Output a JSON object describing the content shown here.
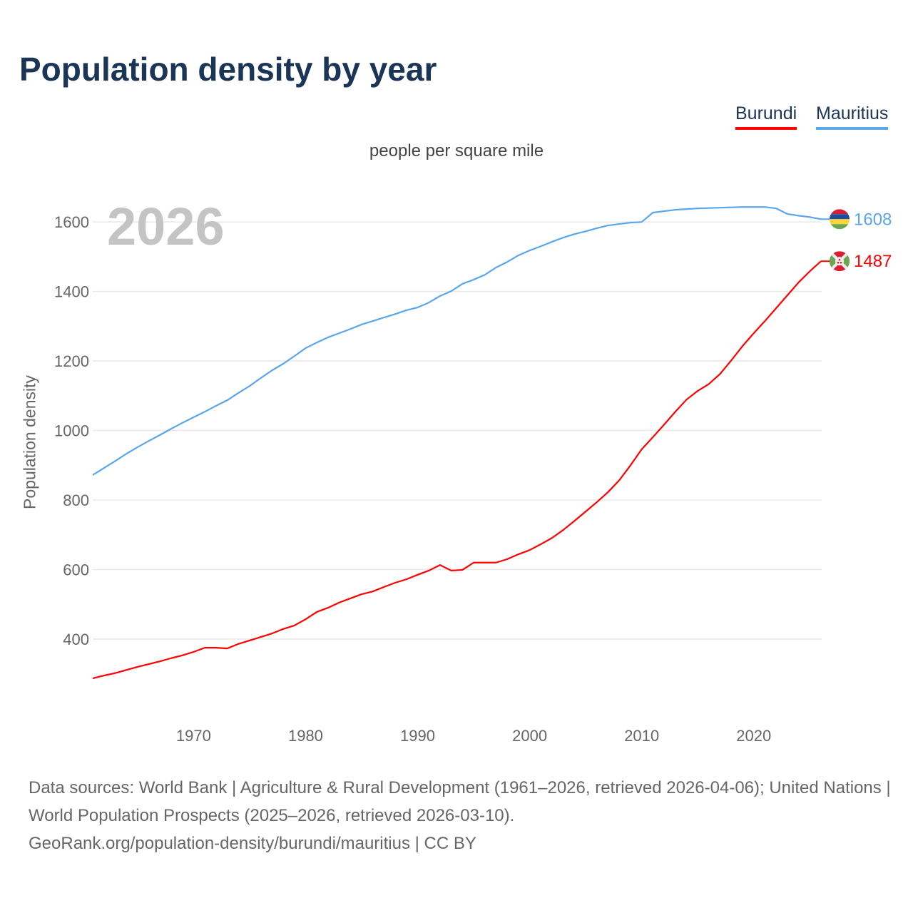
{
  "chart_data": {
    "type": "line",
    "title": "Population density by year",
    "subtitle": "people per square mile",
    "ylabel": "Population density",
    "xlabel": "",
    "current_year_label": "2026",
    "xlim": [
      1961,
      2026
    ],
    "ylim": [
      207,
      1705
    ],
    "x_ticks": [
      1970,
      1980,
      1990,
      2000,
      2010,
      2020
    ],
    "y_ticks": [
      400,
      600,
      800,
      1000,
      1200,
      1400,
      1600
    ],
    "grid": "horizontal",
    "legend_placement": "top-right",
    "x": [
      1961,
      1962,
      1963,
      1964,
      1965,
      1966,
      1967,
      1968,
      1969,
      1970,
      1971,
      1972,
      1973,
      1974,
      1975,
      1976,
      1977,
      1978,
      1979,
      1980,
      1981,
      1982,
      1983,
      1984,
      1985,
      1986,
      1987,
      1988,
      1989,
      1990,
      1991,
      1992,
      1993,
      1994,
      1995,
      1996,
      1997,
      1998,
      1999,
      2000,
      2001,
      2002,
      2003,
      2004,
      2005,
      2006,
      2007,
      2008,
      2009,
      2010,
      2011,
      2012,
      2013,
      2014,
      2015,
      2016,
      2017,
      2018,
      2019,
      2020,
      2021,
      2022,
      2023,
      2024,
      2025,
      2026
    ],
    "series": [
      {
        "name": "Burundi",
        "color": "#ff0000",
        "end_label": "1487",
        "values": [
          287,
          295,
          302,
          311,
          320,
          328,
          336,
          345,
          353,
          363,
          375,
          375,
          373,
          386,
          396,
          406,
          416,
          429,
          439,
          457,
          478,
          490,
          505,
          517,
          529,
          537,
          550,
          562,
          572,
          585,
          597,
          613,
          597,
          599,
          620,
          620,
          620,
          630,
          644,
          656,
          673,
          691,
          714,
          740,
          767,
          794,
          823,
          857,
          900,
          946,
          981,
          1017,
          1054,
          1089,
          1114,
          1134,
          1163,
          1202,
          1243,
          1280,
          1315,
          1352,
          1389,
          1426,
          1458,
          1487
        ]
      },
      {
        "name": "Mauritius",
        "color": "#5aa6ea",
        "end_label": "1608",
        "values": [
          872,
          892,
          912,
          933,
          952,
          970,
          987,
          1005,
          1022,
          1038,
          1054,
          1071,
          1087,
          1108,
          1128,
          1151,
          1173,
          1192,
          1214,
          1237,
          1253,
          1268,
          1280,
          1292,
          1305,
          1315,
          1325,
          1335,
          1346,
          1354,
          1368,
          1387,
          1401,
          1422,
          1434,
          1448,
          1469,
          1485,
          1504,
          1518,
          1530,
          1543,
          1555,
          1565,
          1573,
          1582,
          1590,
          1594,
          1598,
          1600,
          1627,
          1631,
          1635,
          1637,
          1639,
          1640,
          1641,
          1642,
          1643,
          1643,
          1643,
          1639,
          1623,
          1618,
          1614,
          1608
        ]
      }
    ]
  },
  "source": {
    "line1": "Data sources: World Bank | Agriculture & Rural Development (1961–2026, retrieved 2026-04-06); United Nations | World Population Prospects (2025–2026, retrieved 2026-03-10).",
    "line2": "GeoRank.org/population-density/burundi/mauritius | CC BY"
  }
}
